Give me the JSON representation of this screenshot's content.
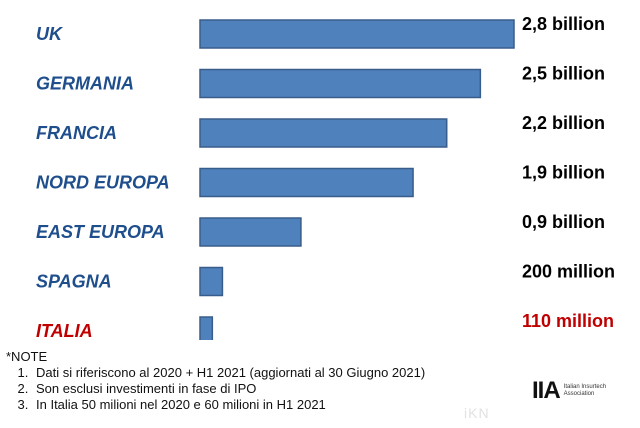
{
  "chart_data": {
    "type": "bar",
    "orientation": "horizontal",
    "categories": [
      "UK",
      "GERMANIA",
      "FRANCIA",
      "NORD EUROPA",
      "EAST EUROPA",
      "SPAGNA",
      "ITALIA"
    ],
    "values": [
      2.8,
      2.5,
      2.2,
      1.9,
      0.9,
      0.2,
      0.11
    ],
    "value_labels": [
      "2,8 billion",
      "2,5 billion",
      "2,2 billion",
      "1,9 billion",
      "0,9 billion",
      "200 million",
      "110 million"
    ],
    "xlim": [
      0,
      2.8
    ],
    "colors": {
      "bar_fill": "#4f81bd",
      "bar_stroke": "#385d8a",
      "category_text": "#1f4e8c",
      "highlight_text": "#c00000",
      "value_text": "#000000"
    },
    "highlight": "ITALIA"
  },
  "notes": {
    "title": "*NOTE",
    "items": [
      "Dati si riferiscono al 2020 + H1 2021 (aggiornati al 30 Giugno 2021)",
      "Son esclusi investimenti in fase di IPO",
      "In Italia 50 milioni nel 2020 e 60 milioni in H1 2021"
    ]
  },
  "logo": {
    "mark": "IIA",
    "text": "Italian Insurtech Association"
  },
  "watermark": "iKN"
}
